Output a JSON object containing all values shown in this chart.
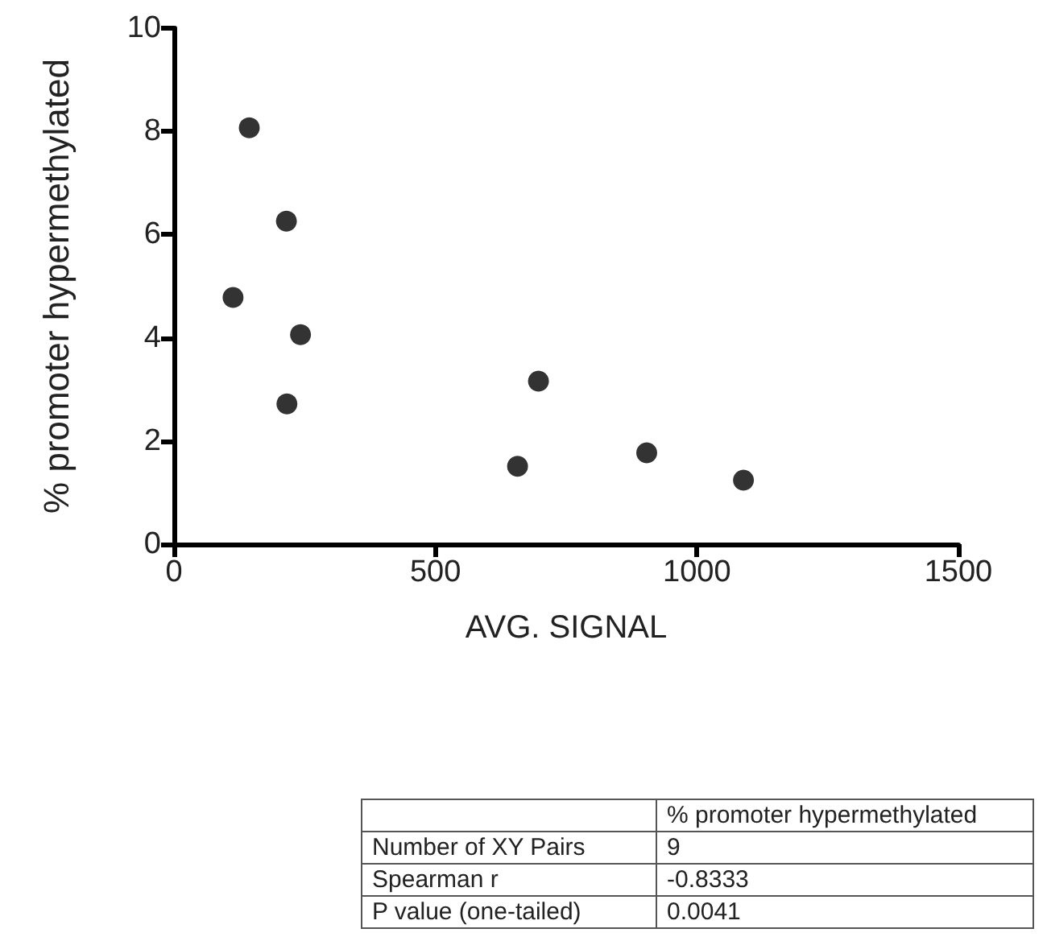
{
  "chart_data": {
    "type": "scatter",
    "xlabel": "AVG. SIGNAL",
    "ylabel": "% promoter hypermethylated",
    "x": [
      144,
      215,
      113,
      242,
      216,
      697,
      657,
      904,
      1089
    ],
    "values": [
      8.07,
      6.26,
      4.78,
      4.06,
      2.72,
      3.16,
      1.51,
      1.77,
      1.24
    ],
    "color": "#000000",
    "marker": "circle",
    "grid": false,
    "xlim": [
      0,
      1500
    ],
    "xticks": [
      0,
      500,
      1000,
      1500
    ],
    "ylim": [
      0,
      10
    ],
    "yticks": [
      0,
      2,
      4,
      6,
      8,
      10
    ],
    "annotations": [
      "% promoter hypermethylated",
      "Number of XY Pairs",
      "9",
      "Spearman r",
      "-0.8333",
      "P value (one-tailed)",
      "0.0041"
    ]
  }
}
